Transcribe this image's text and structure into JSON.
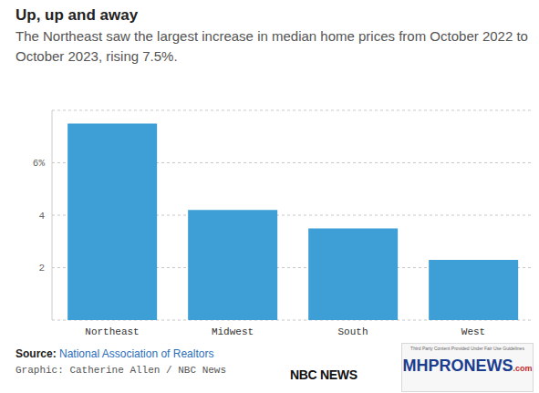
{
  "chart_data": {
    "type": "bar",
    "title": "Up, up and away",
    "subtitle": "The Northeast saw the largest increase in median home prices from October 2022 to October 2023, rising 7.5%.",
    "categories": [
      "Northeast",
      "Midwest",
      "South",
      "West"
    ],
    "values": [
      7.5,
      4.2,
      3.5,
      2.3
    ],
    "color": "#3d9fd5",
    "ylim": [
      0,
      8
    ],
    "yticks": [
      2,
      4,
      {
        "value": 6,
        "label": "6%"
      }
    ],
    "grid": true,
    "source_label": "Source:",
    "source": "National Association of Realtors",
    "credit": "Graphic: Catherine Allen / NBC News",
    "logo": "NBC NEWS",
    "watermark": {
      "note": "Third Party Content Provided Under Fair Use Guidelines",
      "brand": "MHPRONEWS",
      "domain": ".com"
    }
  }
}
